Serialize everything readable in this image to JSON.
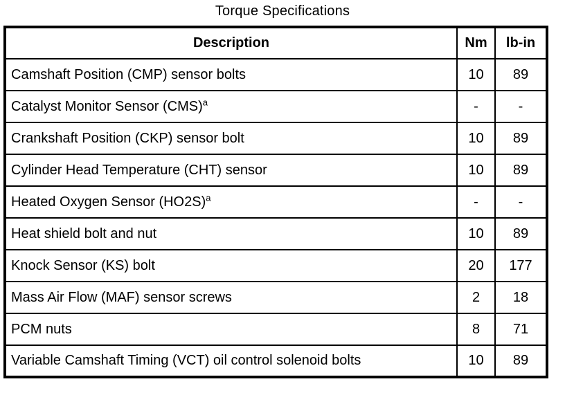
{
  "title": "Torque Specifications",
  "table": {
    "headers": [
      "Description",
      "Nm",
      "lb-in"
    ],
    "rows": [
      {
        "description": "Camshaft Position (CMP) sensor bolts",
        "sup": "",
        "nm": "10",
        "lb_in": "89"
      },
      {
        "description": "Catalyst Monitor Sensor (CMS)",
        "sup": "a",
        "nm": "-",
        "lb_in": "-"
      },
      {
        "description": "Crankshaft Position (CKP) sensor bolt",
        "sup": "",
        "nm": "10",
        "lb_in": "89"
      },
      {
        "description": "Cylinder Head Temperature (CHT) sensor",
        "sup": "",
        "nm": "10",
        "lb_in": "89"
      },
      {
        "description": "Heated Oxygen Sensor (HO2S)",
        "sup": "a",
        "nm": "-",
        "lb_in": "-"
      },
      {
        "description": "Heat shield bolt and nut",
        "sup": "",
        "nm": "10",
        "lb_in": "89"
      },
      {
        "description": "Knock Sensor (KS) bolt",
        "sup": "",
        "nm": "20",
        "lb_in": "177"
      },
      {
        "description": "Mass Air Flow (MAF) sensor screws",
        "sup": "",
        "nm": "2",
        "lb_in": "18"
      },
      {
        "description": "PCM nuts",
        "sup": "",
        "nm": "8",
        "lb_in": "71"
      },
      {
        "description": "Variable Camshaft Timing (VCT) oil control solenoid bolts",
        "sup": "",
        "nm": "10",
        "lb_in": "89"
      }
    ]
  },
  "colors": {
    "border": "#000000",
    "background": "#ffffff",
    "text": "#000000"
  }
}
